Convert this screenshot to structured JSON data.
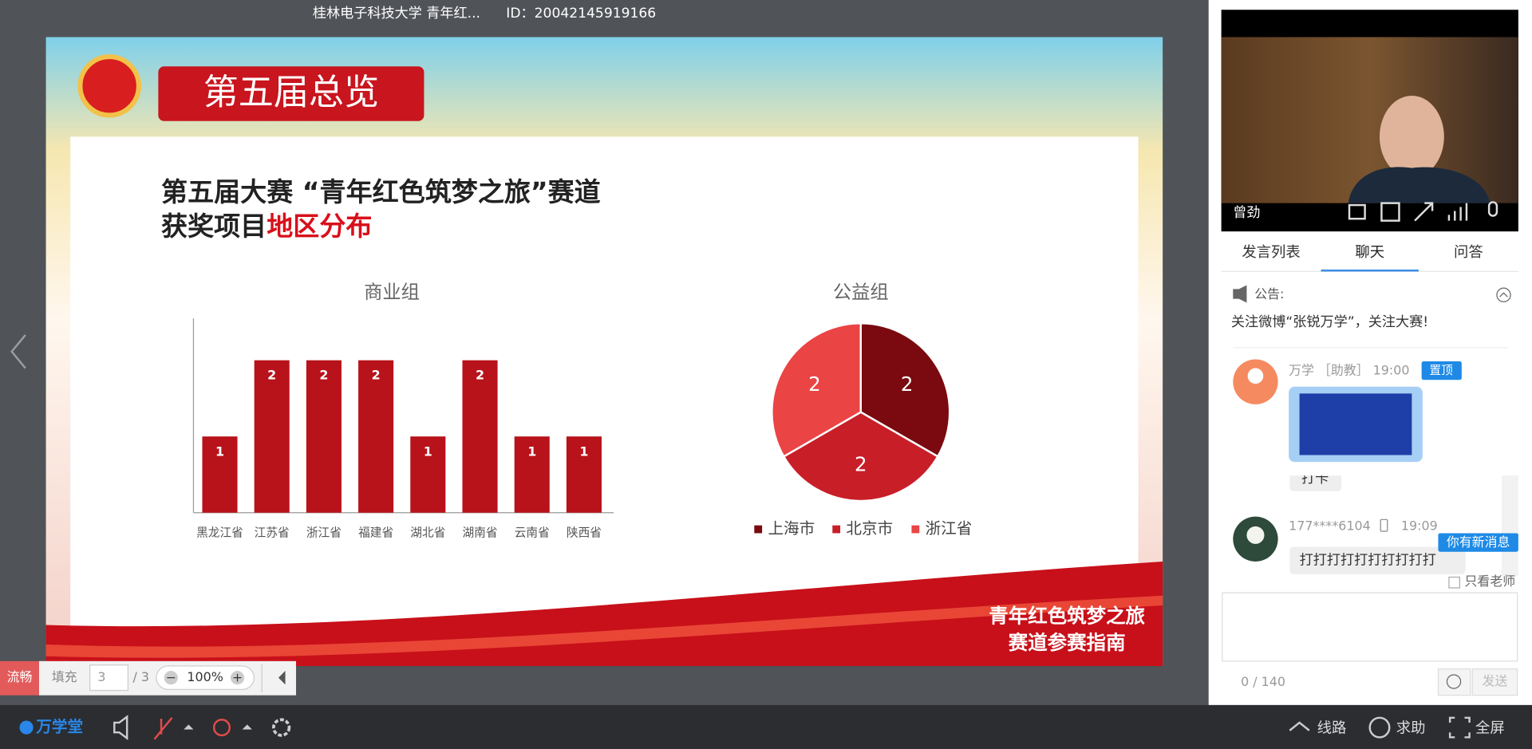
{
  "header": {
    "title": "桂林电子科技大学 青年红...",
    "id": "ID：20042145919166"
  },
  "slide": {
    "banner": "第五届总览",
    "heading_line1": "第五届大赛 “青年红色筑梦之旅”赛道",
    "heading_line2_prefix": "获奖项目",
    "heading_line2_highlight": "地区分布",
    "footer_line1": "青年红色筑梦之旅",
    "footer_line2": "赛道参赛指南"
  },
  "chart_data": [
    {
      "type": "bar",
      "title": "商业组",
      "categories": [
        "黑龙江省",
        "江苏省",
        "浙江省",
        "福建省",
        "湖北省",
        "湖南省",
        "云南省",
        "陕西省"
      ],
      "values": [
        1,
        2,
        2,
        2,
        1,
        2,
        1,
        1
      ],
      "color": "#b8121b",
      "ylim": [
        0,
        2.55
      ]
    },
    {
      "type": "pie",
      "title": "公益组",
      "categories": [
        "上海市",
        "北京市",
        "浙江省"
      ],
      "values": [
        2,
        2,
        2
      ],
      "colors": [
        "#7a0a10",
        "#c81e28",
        "#ea4444"
      ]
    }
  ],
  "controls": {
    "status": "流畅",
    "fill": "填充",
    "page": "3",
    "total": "/ 3",
    "zoom": "100%"
  },
  "video": {
    "name": "曾劲"
  },
  "tabs": [
    "发言列表",
    "聊天",
    "问答"
  ],
  "notice": {
    "label": "公告:",
    "text": "关注微博“张锐万学”，关注大赛!"
  },
  "messages": [
    {
      "sender": "万学 ［助教］ 19:00",
      "badge": "置顶"
    },
    {
      "text": "打卡"
    },
    {
      "sender": "177****6104",
      "time": "19:09",
      "text": "打打打打打打打打打打",
      "badge": "你有新消息"
    }
  ],
  "filter": "只看老师",
  "counter": "0 / 140",
  "send": "发送",
  "toolbar": {
    "logo": "万学堂",
    "route": "线路",
    "help": "求助",
    "fullscreen": "全屏"
  }
}
